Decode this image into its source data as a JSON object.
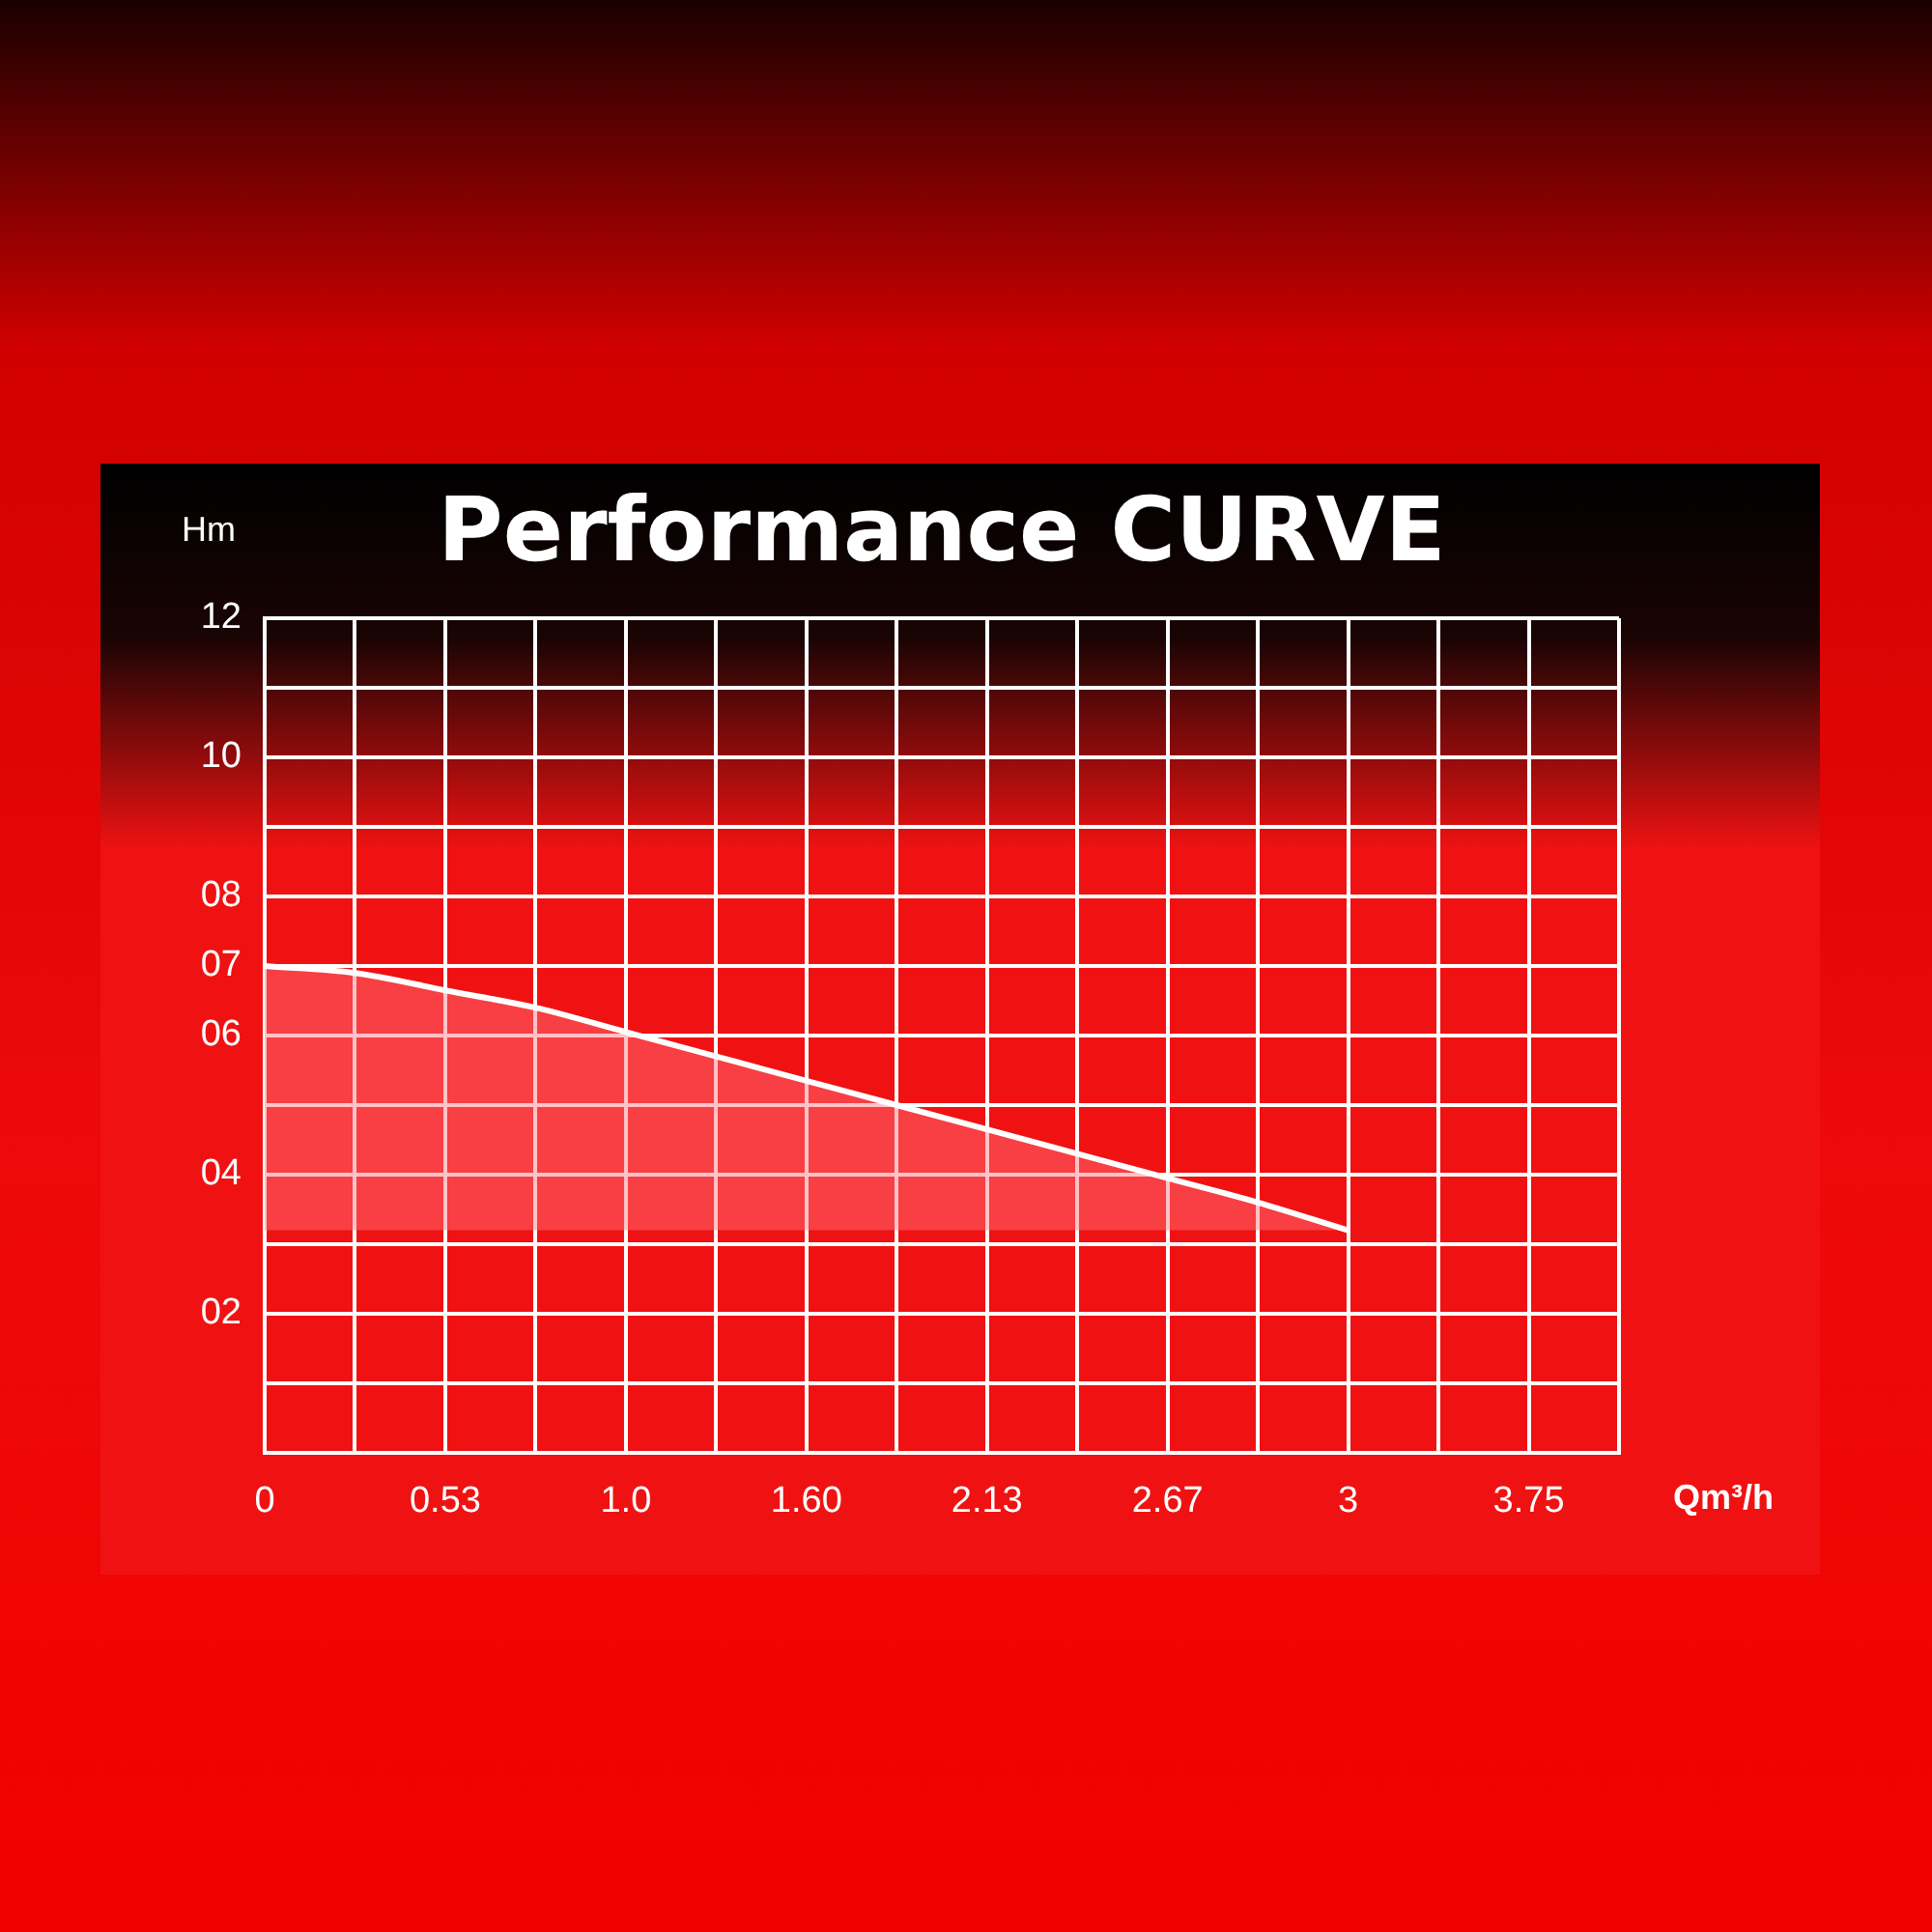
{
  "chart_data": {
    "type": "area",
    "title": "Performance CURVE",
    "ylabel": "Hm",
    "xlabel": "Qm³/h",
    "categories": [
      "0",
      null,
      "0.53",
      null,
      "1.0",
      null,
      "1.60",
      null,
      "2.13",
      null,
      "2.67",
      null,
      "3",
      null,
      "3.75",
      null
    ],
    "series": [
      {
        "color": "#ffffff",
        "values": [
          7.0,
          6.9,
          6.65,
          6.4,
          6.05,
          5.7,
          5.35,
          5.0,
          4.65,
          4.3,
          3.95,
          3.6,
          3.2,
          null,
          null,
          null
        ]
      }
    ],
    "ylim": [
      0,
      12
    ],
    "yticks": [
      {
        "value": 0,
        "label": null
      },
      {
        "value": 1,
        "label": null
      },
      {
        "value": 2,
        "label": "02"
      },
      {
        "value": 3,
        "label": null
      },
      {
        "value": 4,
        "label": "04"
      },
      {
        "value": 5,
        "label": null
      },
      {
        "value": 6,
        "label": "06"
      },
      {
        "value": 7,
        "label": "07"
      },
      {
        "value": 8,
        "label": "08"
      },
      {
        "value": 9,
        "label": null
      },
      {
        "value": 10,
        "label": "10"
      },
      {
        "value": 11,
        "label": null
      },
      {
        "value": 12,
        "label": "12"
      }
    ],
    "grid": true,
    "legend": false,
    "marker": "none",
    "line_style": "solid"
  }
}
